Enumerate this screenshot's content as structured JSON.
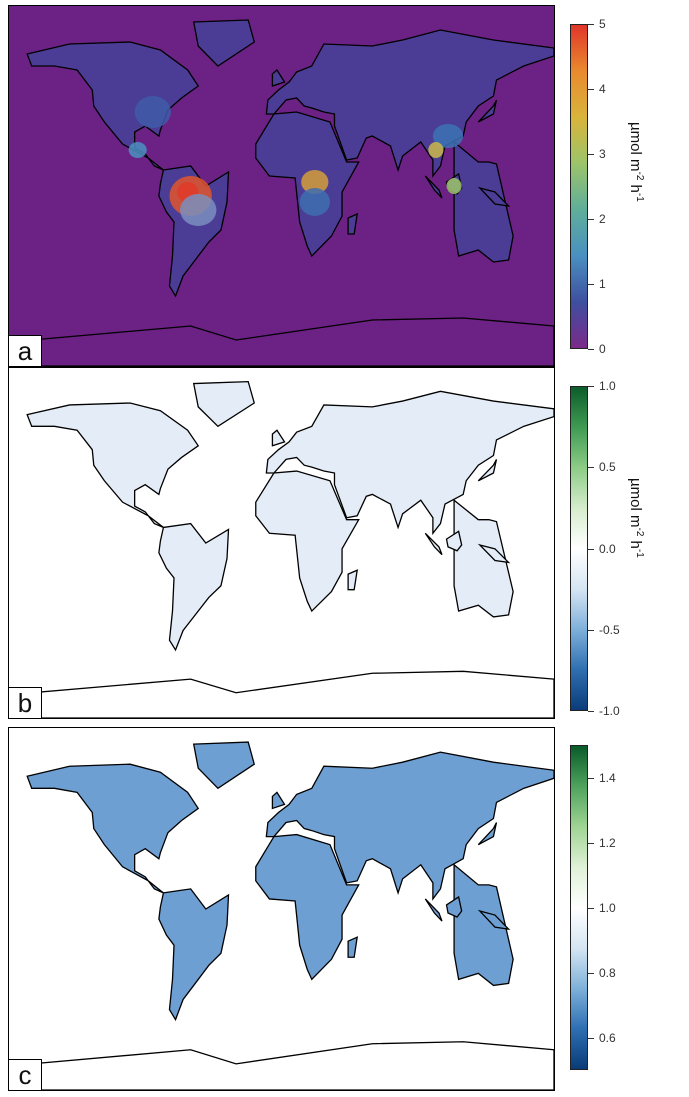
{
  "panels": [
    {
      "label": "a",
      "ocean": "#6c2184",
      "land": "#4b3d96"
    },
    {
      "label": "b",
      "ocean": "#ffffff",
      "land": "#e4edf7"
    },
    {
      "label": "c",
      "ocean": "#ffffff",
      "land": "#6e9fd2"
    }
  ],
  "colorbars": [
    {
      "range": [
        0,
        5
      ],
      "ticks": [
        "0",
        "1",
        "2",
        "3",
        "4",
        "5"
      ],
      "tick_values": [
        0,
        1,
        2,
        3,
        4,
        5
      ],
      "colors": [
        "#7b2a8a",
        "#3f4fa0",
        "#4a90c0",
        "#5fae9a",
        "#9cc46a",
        "#d9b43a",
        "#e98a2e",
        "#e0352a"
      ]
    },
    {
      "range": [
        -1,
        1
      ],
      "ticks": [
        "-1.0",
        "-0.5",
        "0.0",
        "0.5",
        "1.0"
      ],
      "tick_values": [
        -1,
        -0.5,
        0,
        0.5,
        1
      ],
      "colors": [
        "#0b3c7a",
        "#2f6fb0",
        "#7fb0da",
        "#d6e5f3",
        "#ffffff",
        "#d5edcc",
        "#8ccc86",
        "#3f9a52",
        "#0d5c2a"
      ]
    },
    {
      "range": [
        0.5,
        1.5
      ],
      "ticks": [
        "0.6",
        "0.8",
        "1.0",
        "1.2",
        "1.4"
      ],
      "tick_values": [
        0.6,
        0.8,
        1.0,
        1.2,
        1.4
      ],
      "colors": [
        "#0a3b78",
        "#2e6fb2",
        "#7fb1d9",
        "#d5e5f3",
        "#ffffff",
        "#dff1d6",
        "#9fd494",
        "#4ea35c",
        "#0a5a2a"
      ]
    }
  ],
  "unit_label": {
    "text": "µmol  m",
    "sup1": "-2",
    "mid": " h",
    "sup2": "-1"
  }
}
